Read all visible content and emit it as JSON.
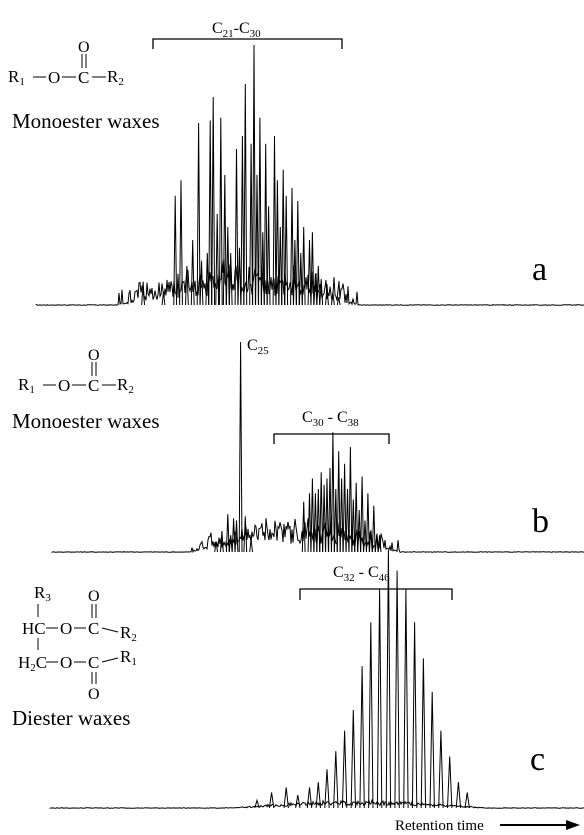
{
  "chart_data": [
    {
      "type": "line",
      "panel_label": "a",
      "class_label": "Monoester waxes",
      "range_label": {
        "start": "C",
        "start_sub": "21",
        "sep": "-",
        "end": "C",
        "end_sub": "30"
      },
      "structure": {
        "r1": "R",
        "r1_sub": "1",
        "r2": "R",
        "r2_sub": "2",
        "o": "O",
        "c": "C",
        "carbonyl_o": "O"
      },
      "peak_labels": [],
      "x": [
        0.245,
        0.28,
        0.3,
        0.31,
        0.32,
        0.33,
        0.34,
        0.345,
        0.355,
        0.36,
        0.365,
        0.372,
        0.378,
        0.385,
        0.39,
        0.395,
        0.405,
        0.41,
        0.415,
        0.42,
        0.43,
        0.435,
        0.44,
        0.445,
        0.45,
        0.455,
        0.46,
        0.47,
        0.475,
        0.48,
        0.485,
        0.49,
        0.5,
        0.505,
        0.51,
        0.515,
        0.52,
        0.53,
        0.535,
        0.54,
        0.545,
        0.55,
        0.56,
        0.57,
        0.58
      ],
      "values": [
        0.09,
        0.05,
        0.42,
        0.48,
        0.15,
        0.25,
        0.7,
        0.17,
        0.2,
        0.71,
        0.8,
        0.35,
        0.72,
        0.5,
        0.3,
        0.2,
        0.6,
        0.22,
        0.65,
        0.85,
        0.62,
        1.0,
        0.5,
        0.72,
        0.28,
        0.62,
        0.38,
        0.65,
        0.48,
        0.3,
        0.52,
        0.42,
        0.45,
        0.25,
        0.4,
        0.2,
        0.3,
        0.25,
        0.28,
        0.12,
        0.15,
        0.1,
        0.08,
        0.05,
        0.03
      ]
    },
    {
      "type": "line",
      "panel_label": "b",
      "class_label": "Monoester waxes",
      "range_label": {
        "start": "C",
        "start_sub": "30",
        "sep": " - ",
        "end": "C",
        "end_sub": "38"
      },
      "structure": {
        "r1": "R",
        "r1_sub": "1",
        "r2": "R",
        "r2_sub": "2",
        "o": "O",
        "c": "C",
        "carbonyl_o": "O"
      },
      "peak_labels": [
        {
          "text": "C",
          "sub": "25",
          "x": 0.412
        }
      ],
      "x": [
        0.37,
        0.38,
        0.39,
        0.395,
        0.4,
        0.405,
        0.412,
        0.42,
        0.43,
        0.52,
        0.53,
        0.535,
        0.54,
        0.545,
        0.55,
        0.555,
        0.56,
        0.565,
        0.57,
        0.575,
        0.58,
        0.585,
        0.59,
        0.595,
        0.6,
        0.605,
        0.61,
        0.615,
        0.62,
        0.625,
        0.63,
        0.635,
        0.64,
        0.645,
        0.65
      ],
      "values": [
        0.05,
        0.1,
        0.18,
        0.08,
        0.16,
        0.15,
        1.0,
        0.17,
        0.06,
        0.24,
        0.28,
        0.35,
        0.28,
        0.3,
        0.38,
        0.32,
        0.35,
        0.4,
        0.57,
        0.3,
        0.48,
        0.35,
        0.42,
        0.3,
        0.5,
        0.25,
        0.33,
        0.2,
        0.36,
        0.15,
        0.28,
        0.1,
        0.22,
        0.08,
        0.08
      ]
    },
    {
      "type": "line",
      "panel_label": "c",
      "class_label": "Diester waxes",
      "range_label": {
        "start": "C",
        "start_sub": "32",
        "sep": " - ",
        "end": "C",
        "end_sub": "46"
      },
      "structure": {
        "r1": "R",
        "r1_sub": "1",
        "r2": "R",
        "r2_sub": "2",
        "r3": "R",
        "r3_sub": "3",
        "o": "O",
        "c": "C",
        "carbonyl_o": "O",
        "hc": "HC",
        "h2c_h": "H",
        "h2c_sub": "2",
        "h2c_c": "C"
      },
      "peak_labels": [],
      "x": [
        0.44,
        0.465,
        0.49,
        0.51,
        0.53,
        0.545,
        0.56,
        0.575,
        0.59,
        0.605,
        0.62,
        0.635,
        0.65,
        0.665,
        0.68,
        0.695,
        0.71,
        0.725,
        0.74,
        0.755,
        0.77,
        0.785,
        0.8
      ],
      "values": [
        0.03,
        0.06,
        0.08,
        0.05,
        0.08,
        0.1,
        0.15,
        0.22,
        0.3,
        0.38,
        0.55,
        0.72,
        0.85,
        1.0,
        0.92,
        0.85,
        0.72,
        0.58,
        0.45,
        0.3,
        0.2,
        0.1,
        0.06
      ]
    }
  ],
  "x_axis": {
    "label": "Retention time"
  }
}
